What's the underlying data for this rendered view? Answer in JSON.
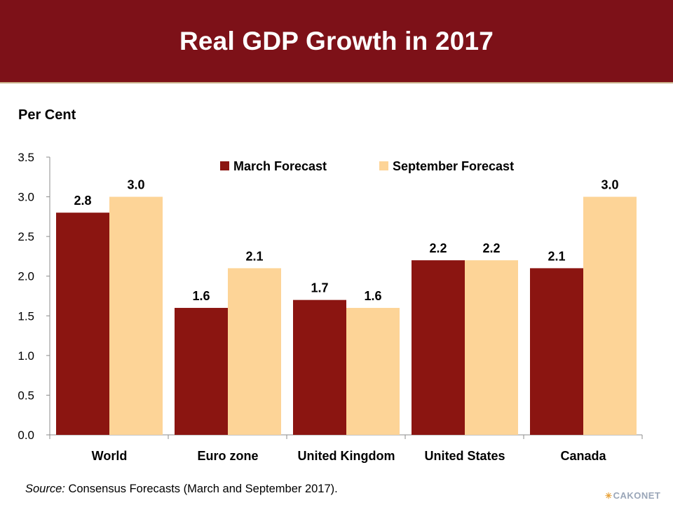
{
  "title": "Real GDP Growth in 2017",
  "source": {
    "prefix": "Source:",
    "text": " Consensus Forecasts (March and September 2017)."
  },
  "logo": "CAKONET",
  "colors": {
    "banner": "#7d1118",
    "march": "#8b1511",
    "september": "#fdd497"
  },
  "chart_data": {
    "type": "bar",
    "title": "Real GDP Growth in 2017",
    "ylabel": "Per Cent",
    "xlabel": "",
    "categories": [
      "World",
      "Euro zone",
      "United Kingdom",
      "United States",
      "Canada"
    ],
    "series": [
      {
        "name": "March Forecast",
        "values": [
          2.8,
          1.6,
          1.7,
          2.2,
          2.1
        ],
        "labels": [
          "2.8",
          "1.6",
          "1.7",
          "2.2",
          "2.1"
        ]
      },
      {
        "name": "September Forecast",
        "values": [
          3.0,
          2.1,
          1.6,
          2.2,
          3.0
        ],
        "labels": [
          "3.0",
          "2.1",
          "1.6",
          "2.2",
          "3.0"
        ]
      }
    ],
    "ylim": [
      0,
      3.5
    ],
    "yticks": [
      "0.0",
      "0.5",
      "1.0",
      "1.5",
      "2.0",
      "2.5",
      "3.0",
      "3.5"
    ],
    "grid": false,
    "legend": "top"
  }
}
